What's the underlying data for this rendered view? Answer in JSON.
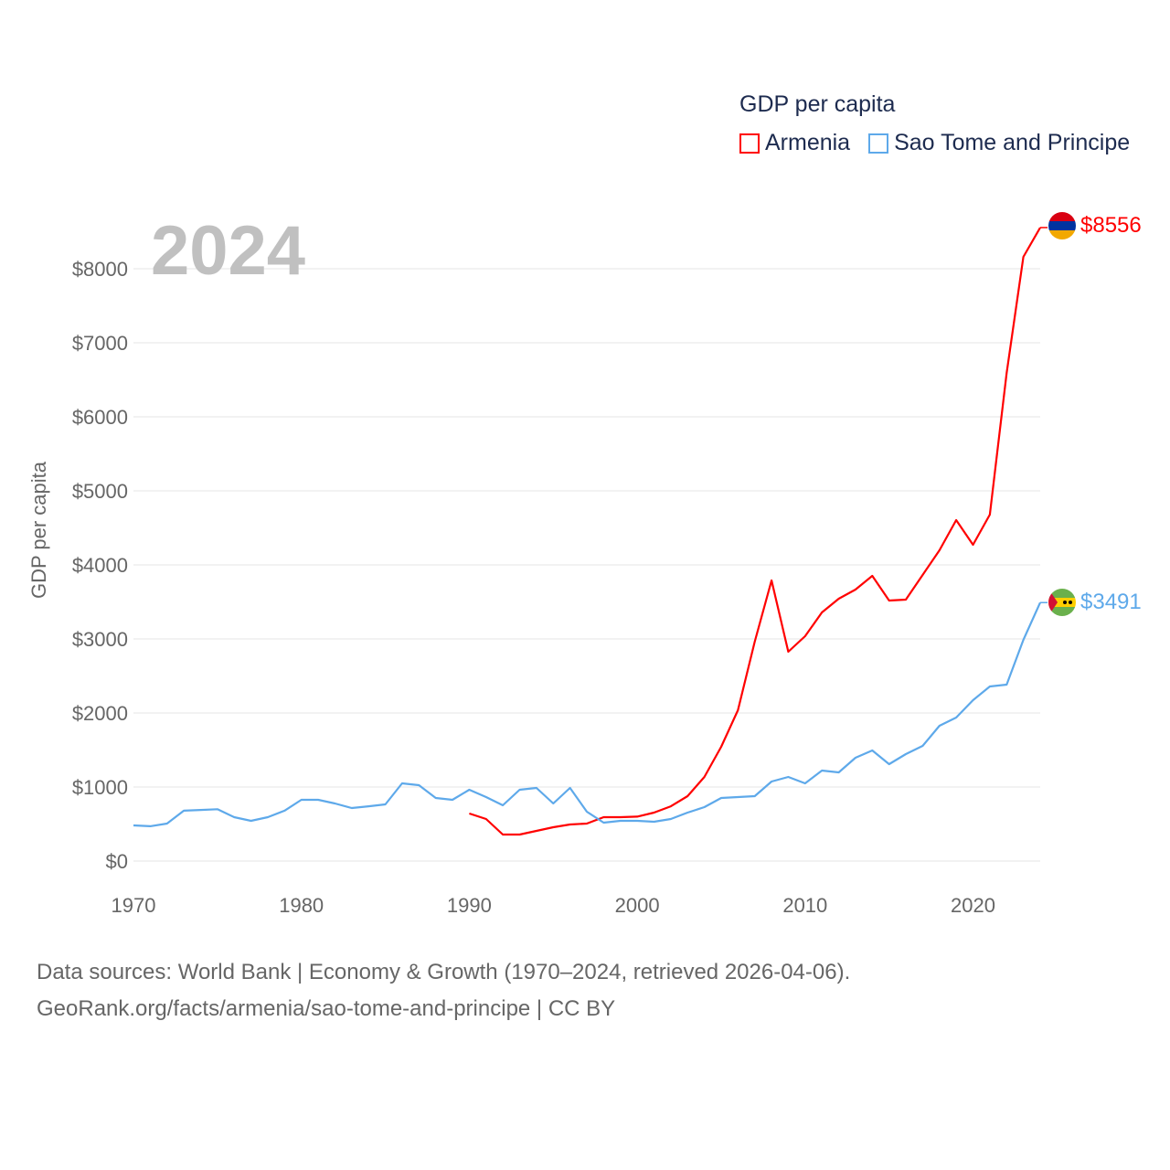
{
  "chart_data": {
    "type": "line",
    "title": "GDP per capita",
    "year_label": "2024",
    "ylabel": "GDP per capita",
    "xlabel": "",
    "xlim": [
      1970,
      2024
    ],
    "ylim": [
      0,
      8000
    ],
    "x_ticks": [
      "1970",
      "1980",
      "1990",
      "2000",
      "2010",
      "2020"
    ],
    "x_tick_values": [
      1970,
      1980,
      1990,
      2000,
      2010,
      2020
    ],
    "y_ticks": [
      "$0",
      "$1000",
      "$2000",
      "$3000",
      "$4000",
      "$5000",
      "$6000",
      "$7000",
      "$8000"
    ],
    "y_tick_values": [
      0,
      1000,
      2000,
      3000,
      4000,
      5000,
      6000,
      7000,
      8000
    ],
    "grid": true,
    "legend_position": "top-right",
    "series": [
      {
        "name": "Armenia",
        "color": "#ff0000",
        "end_label": "$8556",
        "x_start": 1990,
        "values": [
          642,
          568,
          358,
          358,
          407,
          457,
          494,
          506,
          593,
          593,
          600,
          654,
          740,
          877,
          1136,
          1543,
          2037,
          2963,
          3790,
          2827,
          3037,
          3358,
          3543,
          3667,
          3852,
          3519,
          3531,
          3864,
          4198,
          4605,
          4272,
          4679,
          6593,
          8160,
          8556
        ]
      },
      {
        "name": "Sao Tome and Principe",
        "color": "#5ea9ea",
        "end_label": "$3491",
        "x_start": 1970,
        "values": [
          481,
          470,
          506,
          680,
          690,
          700,
          593,
          543,
          593,
          680,
          827,
          827,
          778,
          716,
          740,
          765,
          1049,
          1025,
          852,
          827,
          963,
          864,
          753,
          963,
          988,
          778,
          988,
          667,
          519,
          543,
          543,
          531,
          568,
          654,
          728,
          852,
          864,
          877,
          1074,
          1136,
          1049,
          1222,
          1198,
          1395,
          1494,
          1309,
          1444,
          1556,
          1827,
          1938,
          2173,
          2358,
          2383,
          2988,
          3491
        ]
      }
    ]
  },
  "footer": {
    "line1": "Data sources: World Bank | Economy & Growth (1970–2024, retrieved 2026-04-06).",
    "line2": "GeoRank.org/facts/armenia/sao-tome-and-principe | CC BY"
  }
}
